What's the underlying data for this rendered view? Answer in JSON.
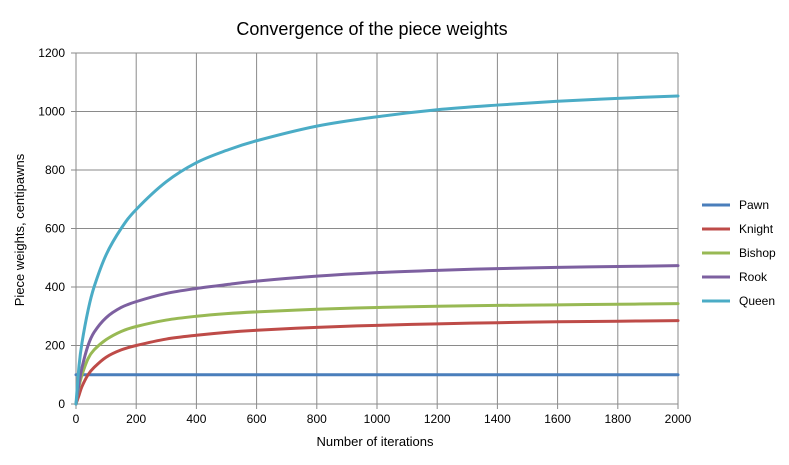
{
  "chart_data": {
    "type": "line",
    "title": "Convergence of the piece weights",
    "xlabel": "Number of iterations",
    "ylabel": "Piece weights, centipawns",
    "xlim": [
      0,
      2000
    ],
    "ylim": [
      0,
      1200
    ],
    "xticks": [
      0,
      200,
      400,
      600,
      800,
      1000,
      1200,
      1400,
      1600,
      1800,
      2000
    ],
    "yticks": [
      0,
      200,
      400,
      600,
      800,
      1000,
      1200
    ],
    "grid": true,
    "legend_position": "right",
    "series": [
      {
        "name": "Pawn",
        "color": "#4a7ebb",
        "x": [
          0,
          20,
          50,
          100,
          200,
          400,
          800,
          1200,
          1600,
          2000
        ],
        "y": [
          100,
          100,
          100,
          100,
          100,
          100,
          100,
          100,
          100,
          100
        ]
      },
      {
        "name": "Knight",
        "color": "#be4b48",
        "x": [
          0,
          10,
          20,
          40,
          60,
          100,
          150,
          200,
          300,
          400,
          500,
          600,
          800,
          1000,
          1200,
          1400,
          1600,
          1800,
          2000
        ],
        "y": [
          0,
          30,
          60,
          100,
          125,
          160,
          185,
          200,
          222,
          235,
          245,
          252,
          262,
          269,
          274,
          278,
          281,
          283,
          285
        ]
      },
      {
        "name": "Bishop",
        "color": "#98b954",
        "x": [
          0,
          10,
          20,
          40,
          60,
          100,
          150,
          200,
          300,
          400,
          500,
          600,
          800,
          1000,
          1200,
          1400,
          1600,
          1800,
          2000
        ],
        "y": [
          0,
          60,
          100,
          155,
          185,
          220,
          248,
          265,
          287,
          300,
          309,
          315,
          324,
          330,
          334,
          337,
          339,
          341,
          343
        ]
      },
      {
        "name": "Rook",
        "color": "#7d60a0",
        "x": [
          0,
          10,
          20,
          40,
          60,
          100,
          150,
          200,
          300,
          400,
          500,
          600,
          800,
          1000,
          1200,
          1400,
          1600,
          1800,
          2000
        ],
        "y": [
          0,
          70,
          125,
          200,
          245,
          295,
          330,
          350,
          378,
          395,
          408,
          420,
          437,
          449,
          457,
          463,
          467,
          470,
          473
        ]
      },
      {
        "name": "Queen",
        "color": "#4bacc6",
        "x": [
          0,
          10,
          20,
          40,
          60,
          100,
          150,
          200,
          300,
          400,
          500,
          600,
          800,
          1000,
          1200,
          1400,
          1600,
          1800,
          2000
        ],
        "y": [
          0,
          130,
          210,
          320,
          400,
          510,
          600,
          665,
          760,
          825,
          867,
          900,
          950,
          982,
          1006,
          1022,
          1035,
          1045,
          1053
        ]
      }
    ]
  }
}
